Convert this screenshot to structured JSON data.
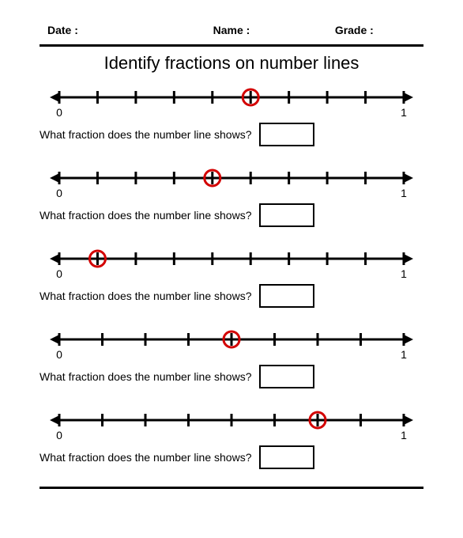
{
  "header": {
    "date_label": "Date :",
    "name_label": "Name :",
    "grade_label": "Grade :"
  },
  "title": "Identify fractions on number lines",
  "question_text": "What fraction does the number line shows?",
  "label_start": "0",
  "label_end": "1",
  "line": {
    "stroke": "#000000",
    "stroke_width": 3,
    "tick_height": 16
  },
  "circle": {
    "stroke": "#d30000",
    "stroke_width": 3,
    "radius": 10
  },
  "problems": [
    {
      "divisions": 9,
      "circled_tick": 5
    },
    {
      "divisions": 9,
      "circled_tick": 4
    },
    {
      "divisions": 9,
      "circled_tick": 1
    },
    {
      "divisions": 8,
      "circled_tick": 4
    },
    {
      "divisions": 8,
      "circled_tick": 6
    }
  ]
}
